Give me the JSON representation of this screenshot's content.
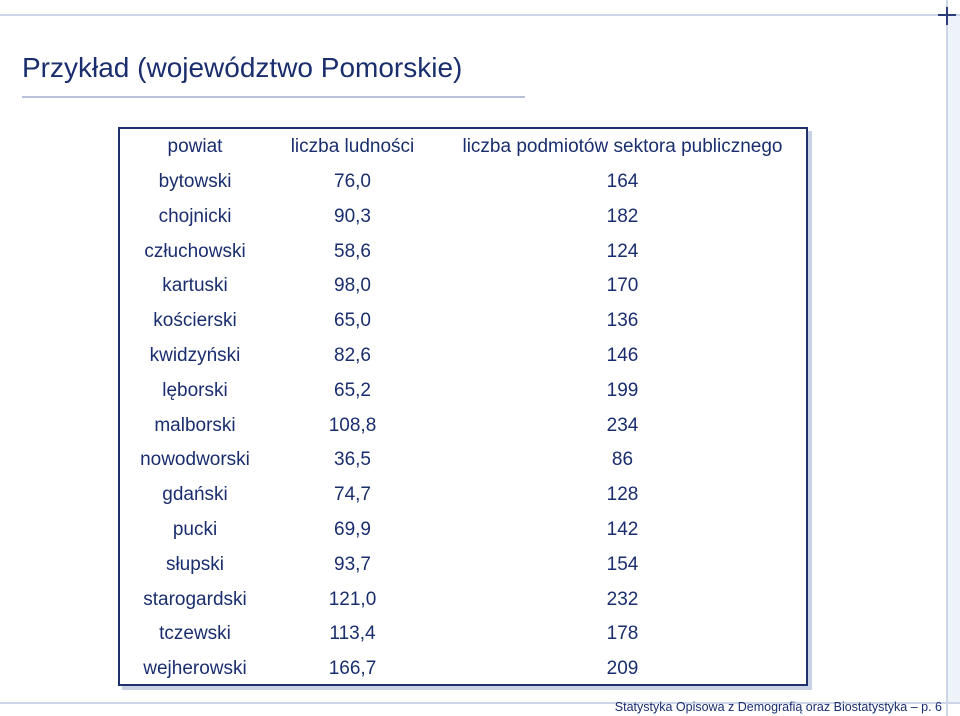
{
  "slide": {
    "title": "Przykład (województwo Pomorskie)",
    "footer": "Statystyka Opisowa z Demografią oraz Biostatystyka – p. 6"
  },
  "table": {
    "headers": [
      "powiat",
      "liczba ludności",
      "liczba podmiotów sektora publicznego"
    ],
    "rows": [
      [
        "bytowski",
        "76,0",
        "164"
      ],
      [
        "chojnicki",
        "90,3",
        "182"
      ],
      [
        "człuchowski",
        "58,6",
        "124"
      ],
      [
        "kartuski",
        "98,0",
        "170"
      ],
      [
        "kościerski",
        "65,0",
        "136"
      ],
      [
        "kwidzyński",
        "82,6",
        "146"
      ],
      [
        "lęborski",
        "65,2",
        "199"
      ],
      [
        "malborski",
        "108,8",
        "234"
      ],
      [
        "nowodworski",
        "36,5",
        "86"
      ],
      [
        "gdański",
        "74,7",
        "128"
      ],
      [
        "pucki",
        "69,9",
        "142"
      ],
      [
        "słupski",
        "93,7",
        "154"
      ],
      [
        "starogardski",
        "121,0",
        "232"
      ],
      [
        "tczewski",
        "113,4",
        "178"
      ],
      [
        "wejherowski",
        "166,7",
        "209"
      ]
    ]
  },
  "colors": {
    "text": "#1a2e6e",
    "frame": "#ccd6e6",
    "border": "#20306c"
  }
}
